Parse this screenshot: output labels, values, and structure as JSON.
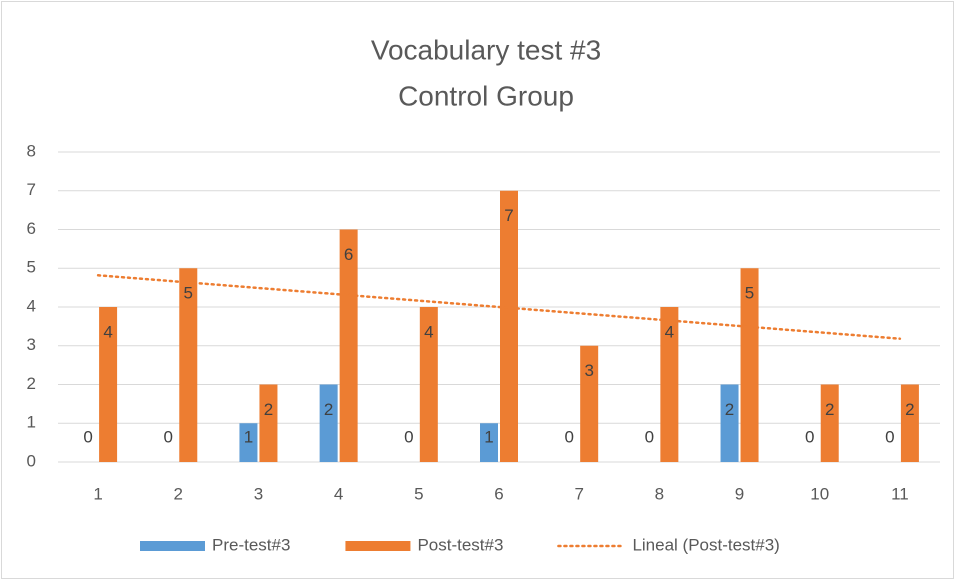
{
  "chart_data": {
    "type": "bar",
    "title": "Vocabulary test #3",
    "subtitle": "Control Group",
    "categories": [
      "1",
      "2",
      "3",
      "4",
      "5",
      "6",
      "7",
      "8",
      "9",
      "10",
      "11"
    ],
    "series": [
      {
        "name": "Pre-test#3",
        "color": "#5b9bd5",
        "values": [
          0,
          0,
          1,
          2,
          0,
          1,
          0,
          0,
          2,
          0,
          0
        ]
      },
      {
        "name": "Post-test#3",
        "color": "#ed7d31",
        "values": [
          4,
          5,
          2,
          6,
          4,
          7,
          3,
          4,
          5,
          2,
          2
        ]
      }
    ],
    "trendline": {
      "name": "Lineal (Post-test#3)",
      "color": "#ed7d31",
      "fit": "linear"
    },
    "ylim": [
      0,
      8
    ],
    "yticks": [
      0,
      1,
      2,
      3,
      4,
      5,
      6,
      7,
      8
    ],
    "grid": true,
    "legend": "bottom"
  }
}
